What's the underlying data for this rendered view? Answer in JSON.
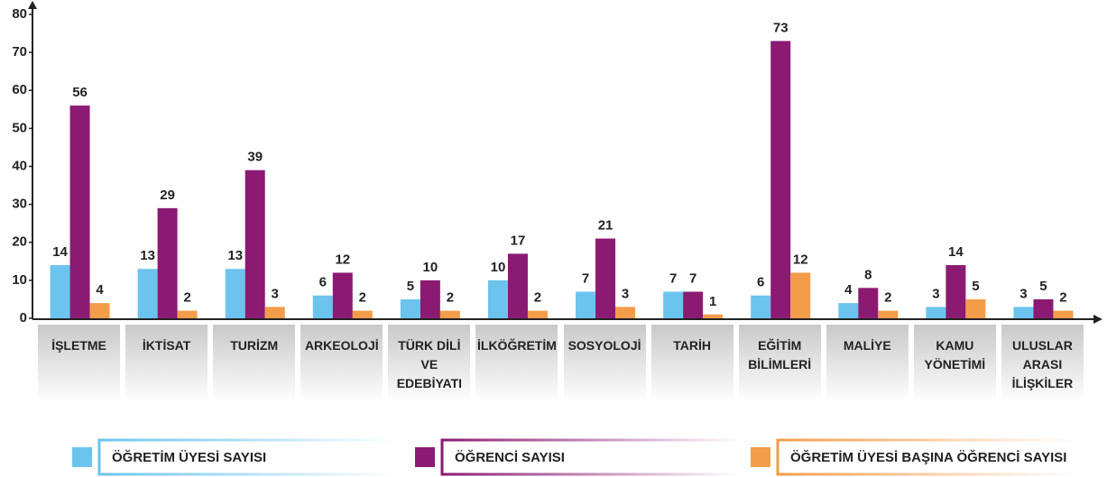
{
  "chart_data": {
    "type": "bar",
    "categories": [
      "İŞLETME",
      "İKTİSAT",
      "TURİZM",
      "ARKEOLOJİ",
      "TÜRK DİLİ\nVE\nEDEBİYATI",
      "İLKÖĞRETİM",
      "SOSYOLOJİ",
      "TARİH",
      "EĞİTİM\nBİLİMLERİ",
      "MALİYE",
      "KAMU\nYÖNETİMİ",
      "ULUSLAR\nARASI\nİLİŞKİLER"
    ],
    "series": [
      {
        "name": "ÖĞRETİM ÜYESİ SAYISI",
        "color": "#6cc4ee",
        "values": [
          14,
          13,
          13,
          6,
          5,
          10,
          7,
          7,
          6,
          4,
          3,
          3
        ]
      },
      {
        "name": "ÖĞRENCİ SAYISI",
        "color": "#8b1a72",
        "values": [
          56,
          29,
          39,
          12,
          10,
          17,
          21,
          7,
          73,
          8,
          14,
          5
        ]
      },
      {
        "name": "ÖĞRETİM ÜYESİ BAŞINA ÖĞRENCİ SAYISI",
        "color": "#f39c4a",
        "values": [
          4,
          2,
          3,
          2,
          2,
          2,
          3,
          1,
          12,
          2,
          5,
          2
        ]
      }
    ],
    "ylim": [
      0,
      80
    ],
    "yticks": [
      0,
      10,
      20,
      30,
      40,
      50,
      60,
      70,
      80
    ],
    "grid": false
  }
}
